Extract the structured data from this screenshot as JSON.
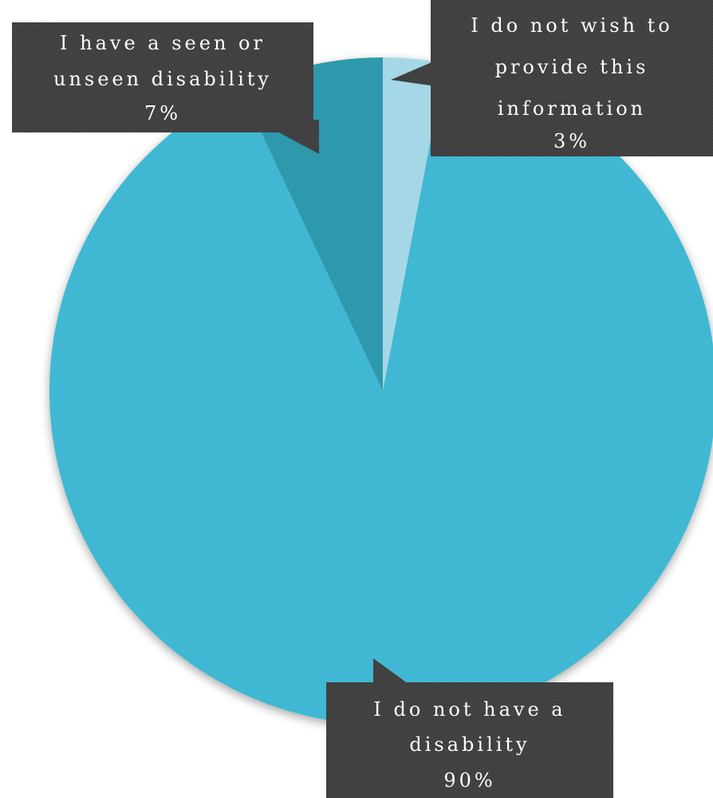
{
  "chart_data": {
    "type": "pie",
    "title": "",
    "legend": "none",
    "start_angle_deg": 0,
    "direction": "clockwise",
    "slices": [
      {
        "label": "I do not wish to provide this information",
        "value": 3,
        "value_label": "3%",
        "color": "#a6d7e6",
        "label_lines": [
          "I do not wish to",
          "provide this",
          "information",
          "3%"
        ]
      },
      {
        "label": "I do not have a disability",
        "value": 90,
        "value_label": "90%",
        "color": "#3fb8d3",
        "label_lines": [
          "I do not have a",
          "disability",
          "90%"
        ]
      },
      {
        "label": "I have a seen or unseen disability",
        "value": 7,
        "value_label": "7%",
        "color": "#2e98ad",
        "label_lines": [
          "I have a seen or",
          "unseen disability",
          "7%"
        ]
      }
    ]
  },
  "colors": {
    "callout_fill": "#3f3f3f",
    "callout_text": "#ffffff",
    "background": "#ffffff"
  }
}
